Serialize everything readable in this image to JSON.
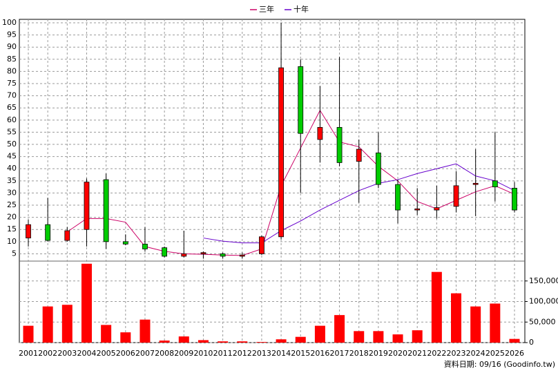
{
  "chart_data": {
    "type": "candlestick",
    "categories": [
      "2001",
      "2002",
      "2003",
      "2004",
      "2005",
      "2006",
      "2007",
      "2008",
      "2009",
      "2010",
      "2011",
      "2012",
      "2013",
      "2014",
      "2015",
      "2016",
      "2017",
      "2018",
      "2019",
      "2020",
      "2021",
      "2022",
      "2023",
      "2024",
      "2025",
      "2026"
    ],
    "candles": {
      "open": [
        11.5,
        17,
        10.5,
        15,
        35.5,
        10,
        9,
        7.5,
        4,
        5,
        5,
        4,
        5,
        12,
        82,
        52,
        57,
        43,
        46.5,
        33.5,
        23,
        23,
        24.5,
        33.5,
        35,
        32
      ],
      "high": [
        19,
        28,
        16,
        36,
        38,
        13,
        16,
        8,
        14.5,
        6,
        5.5,
        5.5,
        12.5,
        100,
        85,
        74,
        86,
        52,
        55,
        35.5,
        32,
        33,
        39,
        48,
        55,
        34.5
      ],
      "low": [
        8,
        10,
        10,
        8,
        7,
        8.5,
        6,
        3.5,
        3.5,
        3,
        3,
        3,
        4.5,
        11,
        30,
        42.5,
        41,
        26,
        32,
        17.5,
        21,
        19.5,
        22,
        20.5,
        26.5,
        22
      ],
      "close": [
        17,
        10.5,
        14.5,
        34.5,
        10,
        9,
        7,
        4,
        5,
        5.5,
        4,
        4.5,
        12,
        81.5,
        54.5,
        57,
        42.5,
        48,
        33.5,
        23,
        23.5,
        24,
        33,
        34,
        32.5,
        23
      ],
      "up_color": "#ff0000",
      "down_color": "#00cc00"
    },
    "series": [
      {
        "name": "三年",
        "color": "#cc0066",
        "values": [
          null,
          null,
          14,
          19.5,
          19.5,
          18,
          8,
          6,
          5,
          4.8,
          4.5,
          4.3,
          7,
          33,
          48.5,
          64,
          51,
          49,
          41,
          35,
          26.5,
          23.5,
          27,
          30.5,
          33,
          29.5
        ]
      },
      {
        "name": "十年",
        "color": "#6600cc",
        "values": [
          null,
          null,
          null,
          null,
          null,
          null,
          null,
          null,
          null,
          11.5,
          10.2,
          9.5,
          9.5,
          14.5,
          18.5,
          23,
          27,
          31,
          34,
          35.5,
          38,
          40,
          42,
          37,
          35,
          31
        ]
      }
    ],
    "volume": {
      "axis": "y2",
      "color": "#ff0000",
      "values": [
        41000,
        88000,
        92000,
        192000,
        43000,
        25000,
        56000,
        5000,
        15000,
        6000,
        3000,
        3000,
        1500,
        8000,
        14000,
        41000,
        67000,
        28000,
        28000,
        20000,
        30000,
        172000,
        120000,
        88000,
        95000,
        9000
      ]
    },
    "ylim": [
      2,
      100
    ],
    "yticks": [
      5,
      10,
      15,
      20,
      25,
      30,
      35,
      40,
      45,
      50,
      55,
      60,
      65,
      70,
      75,
      80,
      85,
      90,
      95,
      100
    ],
    "y2lim": [
      0,
      195000
    ],
    "y2ticks": [
      0,
      {
        "value": 50000,
        "label": "50,000"
      },
      {
        "value": 100000,
        "label": "100,000"
      },
      {
        "value": 150000,
        "label": "150,000"
      }
    ],
    "grid": true,
    "source_note": "資料日期: 09/16 (Goodinfo.tw)"
  }
}
